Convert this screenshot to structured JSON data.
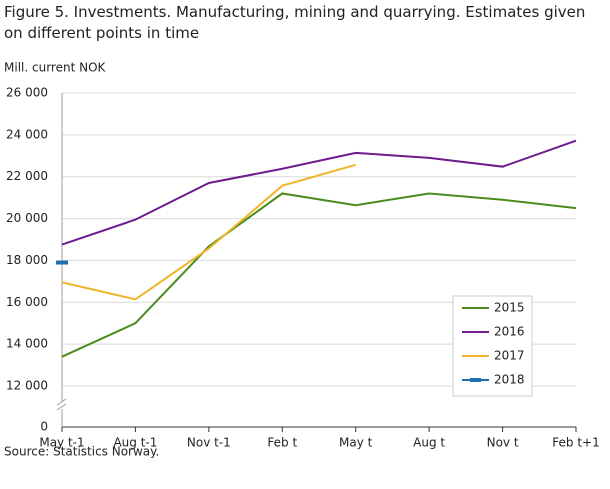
{
  "chart_data": {
    "type": "line",
    "title": "Figure 5. Investments. Manufacturing, mining and quarrying. Estimates given on different points in time",
    "y_label": "Mill. current NOK",
    "source": "Source: Statistics Norway.",
    "categories": [
      "May t-1",
      "Aug t-1",
      "Nov t-1",
      "Feb t",
      "May t",
      "Aug t",
      "Nov t",
      "Feb t+1"
    ],
    "series": [
      {
        "name": "2015",
        "color": "#4a8c1c",
        "values": [
          13400,
          15000,
          18670,
          21200,
          20640,
          21200,
          20900,
          20500
        ]
      },
      {
        "name": "2016",
        "color": "#6f1a8f",
        "values": [
          18760,
          19950,
          21700,
          22380,
          23140,
          22900,
          22480,
          23720
        ]
      },
      {
        "name": "2017",
        "color": "#f0b429",
        "values": [
          16950,
          16140,
          18570,
          21570,
          22570,
          null,
          null,
          null
        ]
      },
      {
        "name": "2018",
        "color": "#1f6fb0",
        "values": [
          17900,
          null,
          null,
          null,
          null,
          null,
          null,
          null
        ]
      }
    ],
    "ylim": [
      0,
      26000
    ],
    "axis_break": [
      0,
      12000
    ],
    "yticks": [
      0,
      {
        "value": 12000,
        "label": "12 000"
      },
      {
        "value": 14000,
        "label": "14 000"
      },
      {
        "value": 16000,
        "label": "16 000"
      },
      {
        "value": 18000,
        "label": "18 000"
      },
      {
        "value": 20000,
        "label": "20 000"
      },
      {
        "value": 22000,
        "label": "22 000"
      },
      {
        "value": 24000,
        "label": "24 000"
      },
      {
        "value": 26000,
        "label": "26 000"
      }
    ],
    "grid": true,
    "legend": "bottom-right"
  }
}
